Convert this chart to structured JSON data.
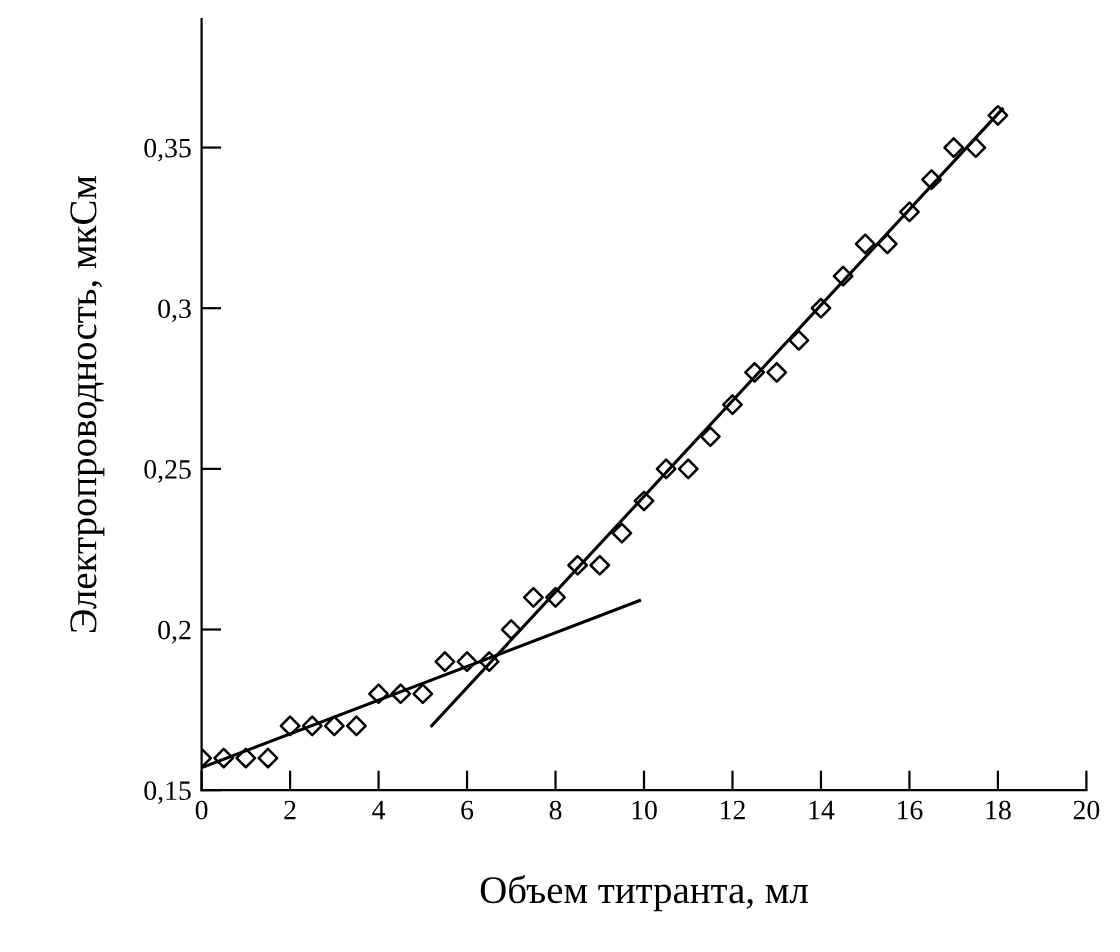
{
  "chart_data": {
    "type": "scatter",
    "xlabel": "Объем титранта, мл",
    "ylabel": "Электропроводность, мкСм",
    "xlim": [
      0,
      20
    ],
    "ylim": [
      0.15,
      0.39
    ],
    "xticks": [
      0,
      2,
      4,
      6,
      8,
      10,
      12,
      14,
      16,
      18,
      20
    ],
    "yticks": [
      {
        "value": 0.15,
        "label": "0,15"
      },
      {
        "value": 0.2,
        "label": "0,2"
      },
      {
        "value": 0.25,
        "label": "0,25"
      },
      {
        "value": 0.3,
        "label": "0,3"
      },
      {
        "value": 0.35,
        "label": "0,35"
      }
    ],
    "grid": false,
    "legend": false,
    "series": [
      {
        "color": "#000000",
        "marker": "diamond",
        "x": [
          0,
          0.5,
          1,
          1.5,
          2,
          2.5,
          3,
          3.5,
          4,
          4.5,
          5,
          5.5,
          6,
          6.5,
          7,
          7.5,
          8,
          8.5,
          9,
          9.5,
          10,
          10.5,
          11,
          11.5,
          12,
          12.5,
          13,
          13.5,
          14,
          14.5,
          15,
          15.5,
          16,
          16.5,
          17,
          17.5,
          18
        ],
        "values": [
          0.16,
          0.16,
          0.16,
          0.16,
          0.17,
          0.17,
          0.17,
          0.17,
          0.18,
          0.18,
          0.18,
          0.19,
          0.19,
          0.19,
          0.2,
          0.21,
          0.21,
          0.22,
          0.22,
          0.23,
          0.24,
          0.25,
          0.25,
          0.26,
          0.27,
          0.28,
          0.28,
          0.29,
          0.3,
          0.31,
          0.32,
          0.32,
          0.33,
          0.34,
          0.35,
          0.35,
          0.36
        ]
      },
      {
        "type": "line",
        "color": "#000000",
        "marker": "none",
        "line_style": "solid",
        "x": [
          0,
          9.9
        ],
        "values": [
          0.157,
          0.209
        ]
      },
      {
        "type": "line",
        "color": "#000000",
        "marker": "none",
        "line_style": "solid",
        "x": [
          5.2,
          18.1
        ],
        "values": [
          0.17,
          0.362
        ]
      }
    ]
  }
}
